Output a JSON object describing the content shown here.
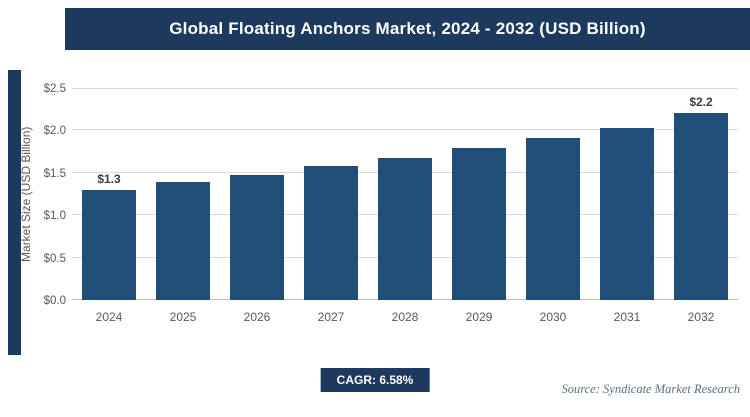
{
  "header": {
    "title": "Global Floating Anchors Market, 2024 - 2032 (USD Billion)"
  },
  "chart_data": {
    "type": "bar",
    "title": "Global Floating Anchors Market, 2024 - 2032 (USD Billion)",
    "categories": [
      "2024",
      "2025",
      "2026",
      "2027",
      "2028",
      "2029",
      "2030",
      "2031",
      "2032"
    ],
    "values": [
      1.3,
      1.39,
      1.48,
      1.58,
      1.68,
      1.79,
      1.91,
      2.03,
      2.2
    ],
    "xlabel": "",
    "ylabel": "Market Size (USD Billion)",
    "ylim": [
      0,
      2.5
    ],
    "yticks": [
      0,
      0.5,
      1.0,
      1.5,
      2.0,
      2.5
    ],
    "ytick_labels": [
      "$0.0",
      "$0.5",
      "$1.0",
      "$1.5",
      "$2.0",
      "$2.5"
    ],
    "grid": true,
    "legend": "none",
    "bar_color": "#1f4e79",
    "data_labels": {
      "first": "$1.3",
      "last": "$2.2"
    }
  },
  "footer": {
    "cagr_label": "CAGR: 6.58%",
    "source": "Source: Syndicate Market Research"
  },
  "colors": {
    "navy": "#1b3a5e",
    "bar": "#1f4e79",
    "grid": "#d9d9d9",
    "axis_text": "#595959"
  }
}
